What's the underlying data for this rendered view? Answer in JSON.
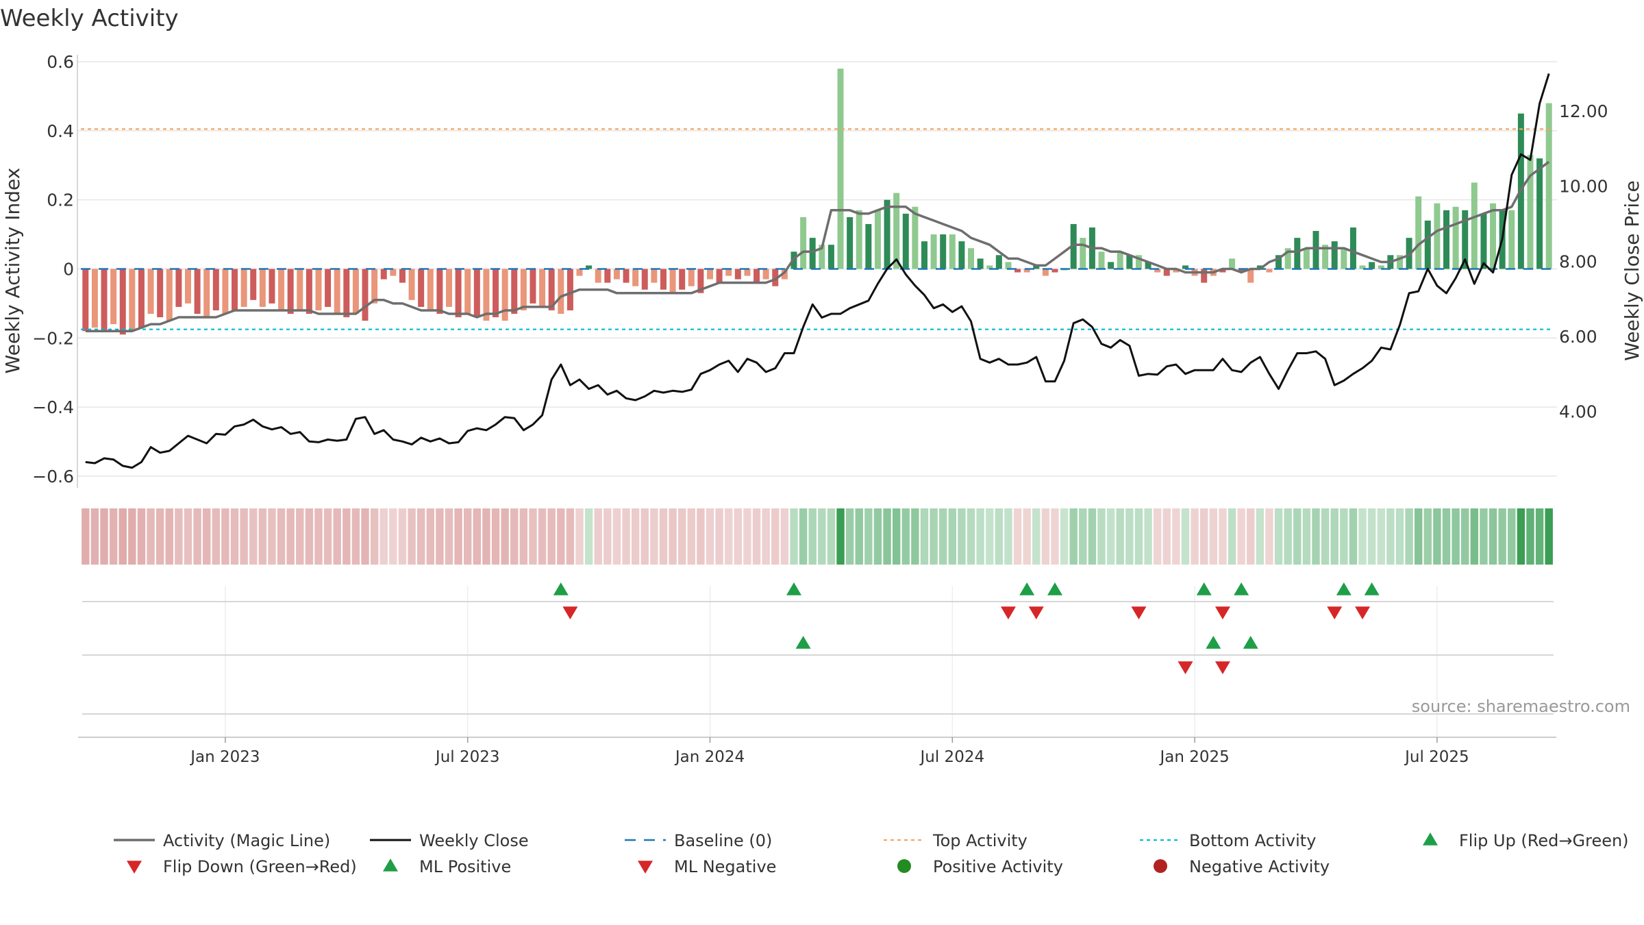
{
  "chart_data": {
    "type": "bar",
    "title": "Weekly Activity",
    "ylabel": "Weekly Activity Index",
    "ylabel_right": "Weekly Close Price",
    "source": "source: sharemaestro.com",
    "ylim": [
      -0.63,
      0.62
    ],
    "ylim_right": [
      2.0,
      13.5
    ],
    "y_ticks": [
      {
        "v": 0.6,
        "label": "0.6"
      },
      {
        "v": 0.4,
        "label": "0.4"
      },
      {
        "v": 0.2,
        "label": "0.2"
      },
      {
        "v": 0,
        "label": "0"
      },
      {
        "v": -0.2,
        "label": "−0.2"
      },
      {
        "v": -0.4,
        "label": "−0.4"
      },
      {
        "v": -0.6,
        "label": "−0.6"
      }
    ],
    "y_ticks_right": [
      {
        "v": 12,
        "label": "12.00"
      },
      {
        "v": 10,
        "label": "10.00"
      },
      {
        "v": 8,
        "label": "8.00"
      },
      {
        "v": 6,
        "label": "6.00"
      },
      {
        "v": 4,
        "label": "4.00"
      }
    ],
    "x_ticks": [
      {
        "week": 15,
        "label": "Jan 2023"
      },
      {
        "week": 41,
        "label": "Jul 2023"
      },
      {
        "week": 67,
        "label": "Jan 2024"
      },
      {
        "week": 93,
        "label": "Jul 2024"
      },
      {
        "week": 119,
        "label": "Jan 2025"
      },
      {
        "week": 145,
        "label": "Jul 2025"
      }
    ],
    "top_activity": 0.405,
    "bottom_activity": -0.175,
    "baseline": 0,
    "activity": [
      -0.18,
      -0.17,
      -0.18,
      -0.16,
      -0.19,
      -0.18,
      -0.17,
      -0.13,
      -0.14,
      -0.15,
      -0.11,
      -0.1,
      -0.13,
      -0.14,
      -0.12,
      -0.13,
      -0.12,
      -0.11,
      -0.09,
      -0.11,
      -0.1,
      -0.12,
      -0.13,
      -0.12,
      -0.13,
      -0.12,
      -0.11,
      -0.13,
      -0.14,
      -0.13,
      -0.15,
      -0.1,
      -0.03,
      -0.02,
      -0.04,
      -0.09,
      -0.11,
      -0.12,
      -0.13,
      -0.11,
      -0.14,
      -0.13,
      -0.14,
      -0.15,
      -0.14,
      -0.15,
      -0.13,
      -0.12,
      -0.1,
      -0.11,
      -0.12,
      -0.13,
      -0.12,
      -0.02,
      0.01,
      -0.04,
      -0.04,
      -0.03,
      -0.04,
      -0.05,
      -0.06,
      -0.04,
      -0.06,
      -0.07,
      -0.06,
      -0.05,
      -0.07,
      -0.03,
      -0.04,
      -0.02,
      -0.03,
      -0.02,
      -0.04,
      -0.03,
      -0.05,
      -0.03,
      0.05,
      0.15,
      0.09,
      0.07,
      0.07,
      0.58,
      0.15,
      0.17,
      0.13,
      0.17,
      0.2,
      0.22,
      0.16,
      0.18,
      0.08,
      0.1,
      0.1,
      0.1,
      0.08,
      0.06,
      0.03,
      0.01,
      0.04,
      0.02,
      -0.01,
      -0.01,
      0.01,
      -0.02,
      -0.01,
      0.0,
      0.13,
      0.09,
      0.12,
      0.05,
      0.02,
      0.05,
      0.04,
      0.04,
      0.02,
      -0.01,
      -0.02,
      -0.01,
      0.01,
      -0.02,
      -0.04,
      -0.02,
      -0.01,
      0.03,
      -0.01,
      -0.04,
      0.01,
      -0.01,
      0.04,
      0.06,
      0.09,
      0.06,
      0.11,
      0.07,
      0.08,
      0.06,
      0.12,
      0.01,
      0.02,
      0.01,
      0.04,
      0.04,
      0.09,
      0.21,
      0.14,
      0.19,
      0.17,
      0.18,
      0.17,
      0.25,
      0.16,
      0.19,
      0.17,
      0.17,
      0.45,
      0.33,
      0.32,
      0.48
    ],
    "magic_line": [
      -0.18,
      -0.18,
      -0.18,
      -0.18,
      -0.18,
      -0.18,
      -0.17,
      -0.16,
      -0.16,
      -0.15,
      -0.14,
      -0.14,
      -0.14,
      -0.14,
      -0.14,
      -0.13,
      -0.12,
      -0.12,
      -0.12,
      -0.12,
      -0.12,
      -0.12,
      -0.12,
      -0.12,
      -0.12,
      -0.13,
      -0.13,
      -0.13,
      -0.13,
      -0.13,
      -0.11,
      -0.09,
      -0.09,
      -0.1,
      -0.1,
      -0.11,
      -0.12,
      -0.12,
      -0.12,
      -0.13,
      -0.13,
      -0.13,
      -0.14,
      -0.13,
      -0.13,
      -0.12,
      -0.12,
      -0.11,
      -0.11,
      -0.11,
      -0.11,
      -0.08,
      -0.07,
      -0.06,
      -0.06,
      -0.06,
      -0.06,
      -0.07,
      -0.07,
      -0.07,
      -0.07,
      -0.07,
      -0.07,
      -0.07,
      -0.07,
      -0.07,
      -0.06,
      -0.05,
      -0.04,
      -0.04,
      -0.04,
      -0.04,
      -0.04,
      -0.04,
      -0.03,
      -0.01,
      0.03,
      0.05,
      0.05,
      0.06,
      0.17,
      0.17,
      0.17,
      0.16,
      0.16,
      0.17,
      0.18,
      0.18,
      0.18,
      0.16,
      0.15,
      0.14,
      0.13,
      0.12,
      0.11,
      0.09,
      0.08,
      0.07,
      0.05,
      0.03,
      0.03,
      0.02,
      0.01,
      0.01,
      0.03,
      0.05,
      0.07,
      0.07,
      0.06,
      0.06,
      0.05,
      0.05,
      0.04,
      0.03,
      0.02,
      0.01,
      0.0,
      0.0,
      -0.01,
      -0.01,
      -0.01,
      -0.01,
      0.0,
      0.0,
      -0.01,
      0.0,
      0.0,
      0.02,
      0.03,
      0.05,
      0.05,
      0.06,
      0.06,
      0.06,
      0.06,
      0.06,
      0.05,
      0.04,
      0.03,
      0.02,
      0.02,
      0.03,
      0.04,
      0.07,
      0.09,
      0.11,
      0.12,
      0.13,
      0.14,
      0.15,
      0.16,
      0.17,
      0.17,
      0.18,
      0.23,
      0.27,
      0.29,
      0.31
    ],
    "weekly_close": [
      2.65,
      2.62,
      2.75,
      2.72,
      2.55,
      2.5,
      2.65,
      3.05,
      2.9,
      2.95,
      3.15,
      3.35,
      3.25,
      3.15,
      3.4,
      3.38,
      3.6,
      3.65,
      3.78,
      3.6,
      3.52,
      3.58,
      3.4,
      3.45,
      3.2,
      3.18,
      3.25,
      3.22,
      3.25,
      3.8,
      3.85,
      3.4,
      3.5,
      3.25,
      3.2,
      3.12,
      3.3,
      3.2,
      3.28,
      3.15,
      3.18,
      3.48,
      3.55,
      3.5,
      3.65,
      3.85,
      3.82,
      3.5,
      3.65,
      3.9,
      4.85,
      5.25,
      4.7,
      4.85,
      4.6,
      4.7,
      4.45,
      4.55,
      4.35,
      4.3,
      4.4,
      4.55,
      4.5,
      4.55,
      4.52,
      4.58,
      5.0,
      5.1,
      5.25,
      5.35,
      5.05,
      5.4,
      5.3,
      5.05,
      5.15,
      5.55,
      5.55,
      6.25,
      6.85,
      6.5,
      6.6,
      6.6,
      6.75,
      6.85,
      6.95,
      7.4,
      7.8,
      8.05,
      7.65,
      7.35,
      7.1,
      6.75,
      6.85,
      6.65,
      6.8,
      6.4,
      5.4,
      5.3,
      5.4,
      5.25,
      5.25,
      5.3,
      5.45,
      4.8,
      4.8,
      5.35,
      6.35,
      6.45,
      6.25,
      5.8,
      5.7,
      5.9,
      5.75,
      4.95,
      5.0,
      4.98,
      5.2,
      5.25,
      5.0,
      5.1,
      5.1,
      5.1,
      5.4,
      5.1,
      5.05,
      5.3,
      5.45,
      5.0,
      4.6,
      5.1,
      5.55,
      5.55,
      5.6,
      5.4,
      4.7,
      4.82,
      5.0,
      5.15,
      5.35,
      5.7,
      5.65,
      6.3,
      7.15,
      7.2,
      7.8,
      7.35,
      7.15,
      7.55,
      8.05,
      7.4,
      7.95,
      7.7,
      8.6,
      10.3,
      10.85,
      10.7,
      12.2,
      13.0
    ],
    "flip_up_weeks": [
      51,
      76,
      101,
      104,
      120,
      124,
      135,
      138
    ],
    "flip_down_weeks": [
      52,
      99,
      102,
      113,
      122,
      134,
      137
    ],
    "ml_positive_weeks": [
      77,
      121,
      125
    ],
    "ml_negative_weeks": [
      118,
      122
    ],
    "heat_strip": "derived from activity",
    "legend": [
      {
        "key": "magic_line",
        "label": "Activity (Magic Line)"
      },
      {
        "key": "weekly_close",
        "label": "Weekly Close"
      },
      {
        "key": "baseline",
        "label": "Baseline (0)"
      },
      {
        "key": "top_activity",
        "label": "Top Activity"
      },
      {
        "key": "bottom_activity",
        "label": "Bottom Activity"
      },
      {
        "key": "flip_up",
        "label": "Flip Up (Red→Green)"
      },
      {
        "key": "flip_down",
        "label": "Flip Down (Green→Red)"
      },
      {
        "key": "ml_positive",
        "label": "ML Positive"
      },
      {
        "key": "ml_negative",
        "label": "ML Negative"
      },
      {
        "key": "positive_activity",
        "label": "Positive Activity"
      },
      {
        "key": "negative_activity",
        "label": "Negative Activity"
      }
    ],
    "colors": {
      "pos_dark": "#2e8b57",
      "pos_light": "#8fc98f",
      "neg_dark": "#cd5c5c",
      "neg_light": "#e9967a",
      "magic_line": "#6e6e6e",
      "close": "#111111",
      "baseline": "#1f77b4",
      "top": "#f4a460",
      "bottom": "#00bcd4",
      "flip_up": "#1f9e48",
      "flip_down": "#d62728",
      "pos_dot": "#228b22",
      "neg_dot": "#b22222",
      "grid": "#e6e6e6"
    }
  }
}
